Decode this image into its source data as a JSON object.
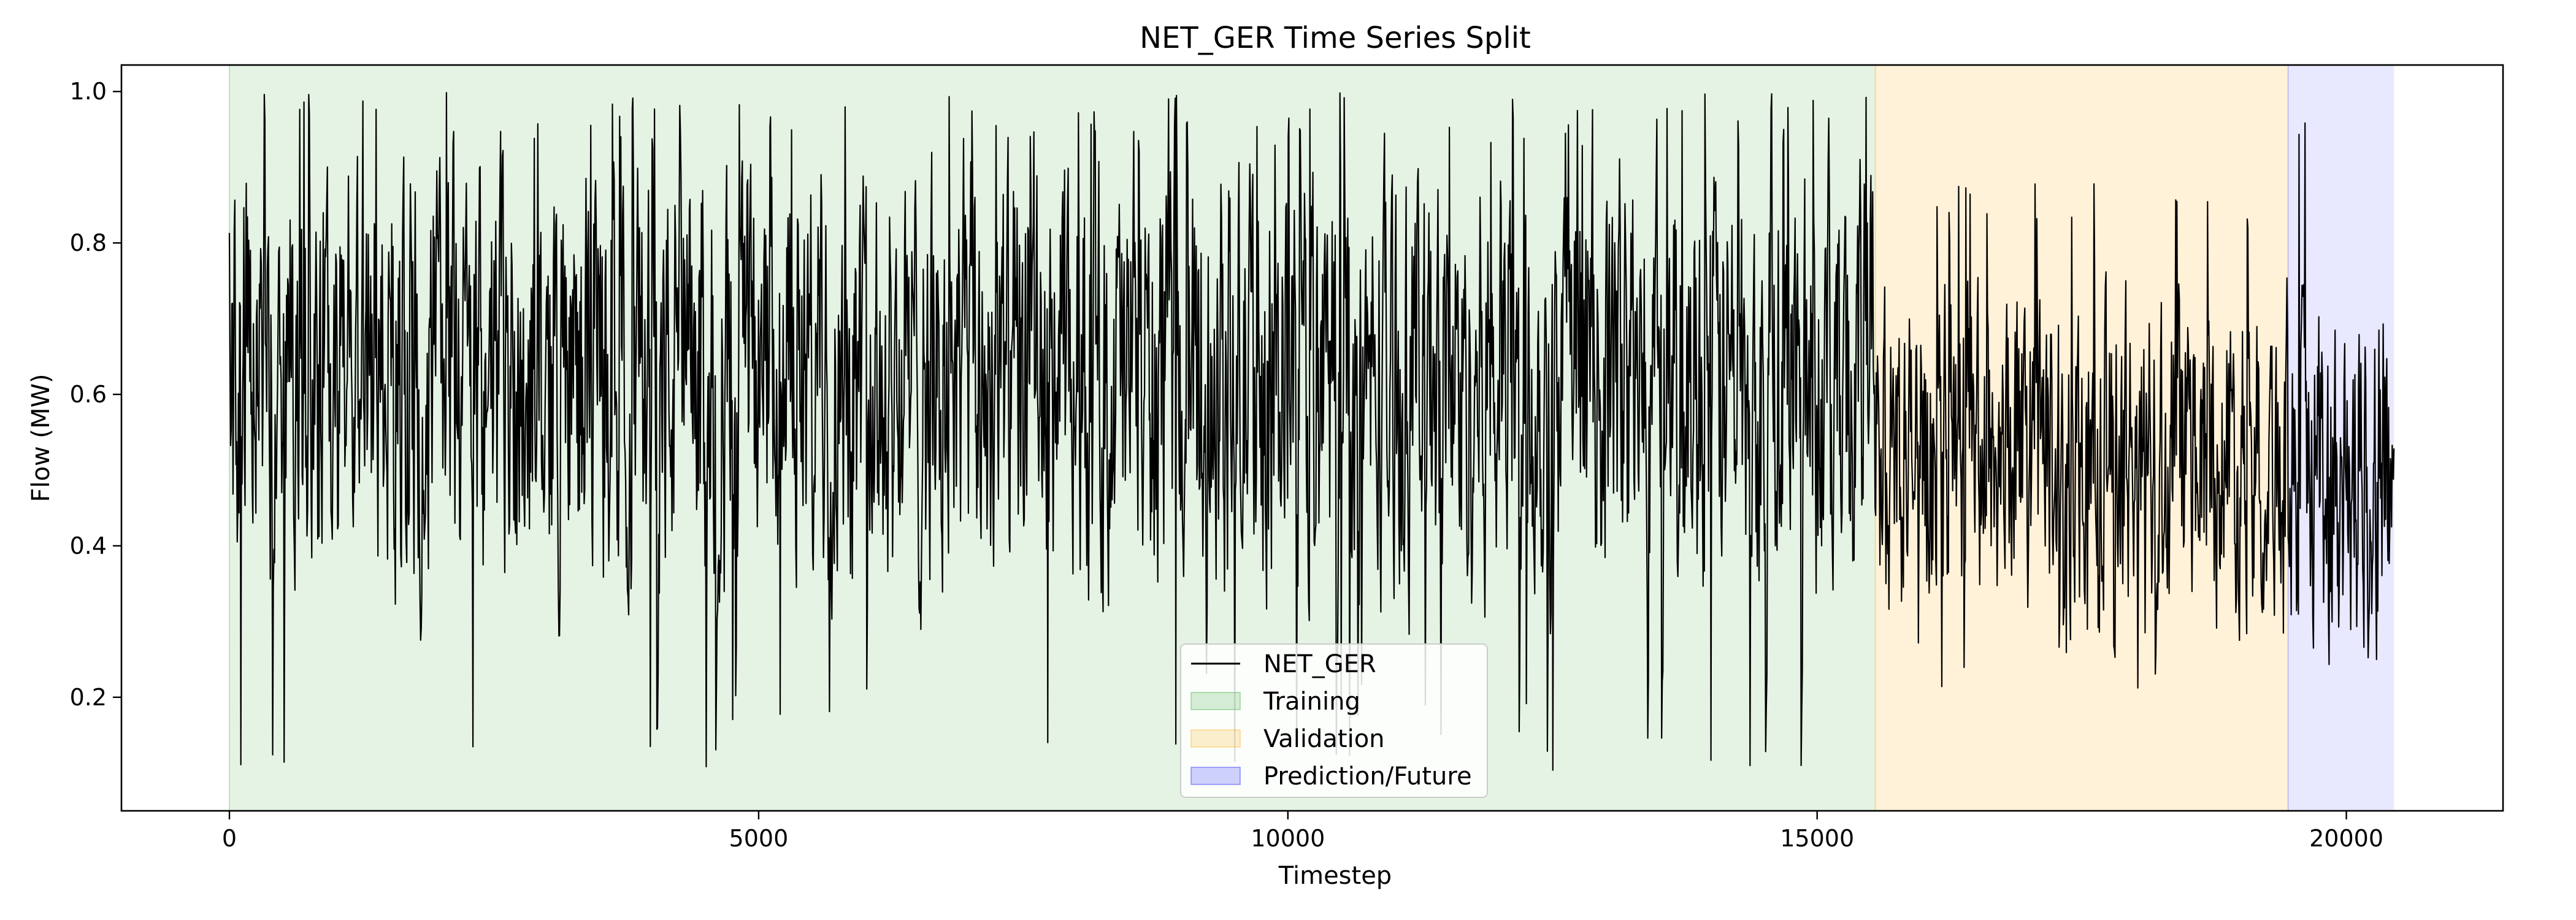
{
  "chart_data": {
    "type": "line",
    "title": "NET_GER Time Series Split",
    "xlabel": "Timestep",
    "ylabel": "Flow (MW)",
    "xlim": [
      -1020,
      21480
    ],
    "ylim": [
      0.05,
      1.035
    ],
    "x_ticks": [
      0,
      5000,
      10000,
      15000,
      20000
    ],
    "y_ticks": [
      0.2,
      0.4,
      0.6,
      0.8,
      1.0
    ],
    "x_tick_labels": [
      "0",
      "5000",
      "10000",
      "15000",
      "20000"
    ],
    "y_tick_labels": [
      "0.2",
      "0.4",
      "0.6",
      "0.8",
      "1.0"
    ],
    "grid": false,
    "legend_position": "lower center",
    "series": [
      {
        "name": "NET_GER",
        "color": "#000000",
        "x_range": [
          0,
          20450
        ],
        "approx_segments": [
          {
            "x_range": [
              0,
              15550
            ],
            "mean": 0.62,
            "min": 0.1,
            "max": 1.0
          },
          {
            "x_range": [
              15550,
              19450
            ],
            "mean": 0.52,
            "min": 0.21,
            "max": 0.88
          },
          {
            "x_range": [
              19450,
              20450
            ],
            "mean": 0.5,
            "min": 0.22,
            "max": 0.98
          }
        ]
      }
    ],
    "regions": [
      {
        "name": "Training",
        "x_range": [
          0,
          15550
        ],
        "color": "#2ca02c",
        "alpha": 0.12
      },
      {
        "name": "Validation",
        "x_range": [
          15550,
          19450
        ],
        "color": "#ffa500",
        "alpha": 0.15
      },
      {
        "name": "Prediction/Future",
        "x_range": [
          19450,
          20450
        ],
        "color": "#0000ff",
        "alpha": 0.09
      }
    ],
    "legend": [
      {
        "label": "NET_GER",
        "kind": "line",
        "color": "#000000"
      },
      {
        "label": "Training",
        "kind": "patch",
        "color": "#2ca02c"
      },
      {
        "label": "Validation",
        "kind": "patch",
        "color": "#ffa500"
      },
      {
        "label": "Prediction/Future",
        "kind": "patch",
        "color": "#0000ff"
      }
    ]
  }
}
